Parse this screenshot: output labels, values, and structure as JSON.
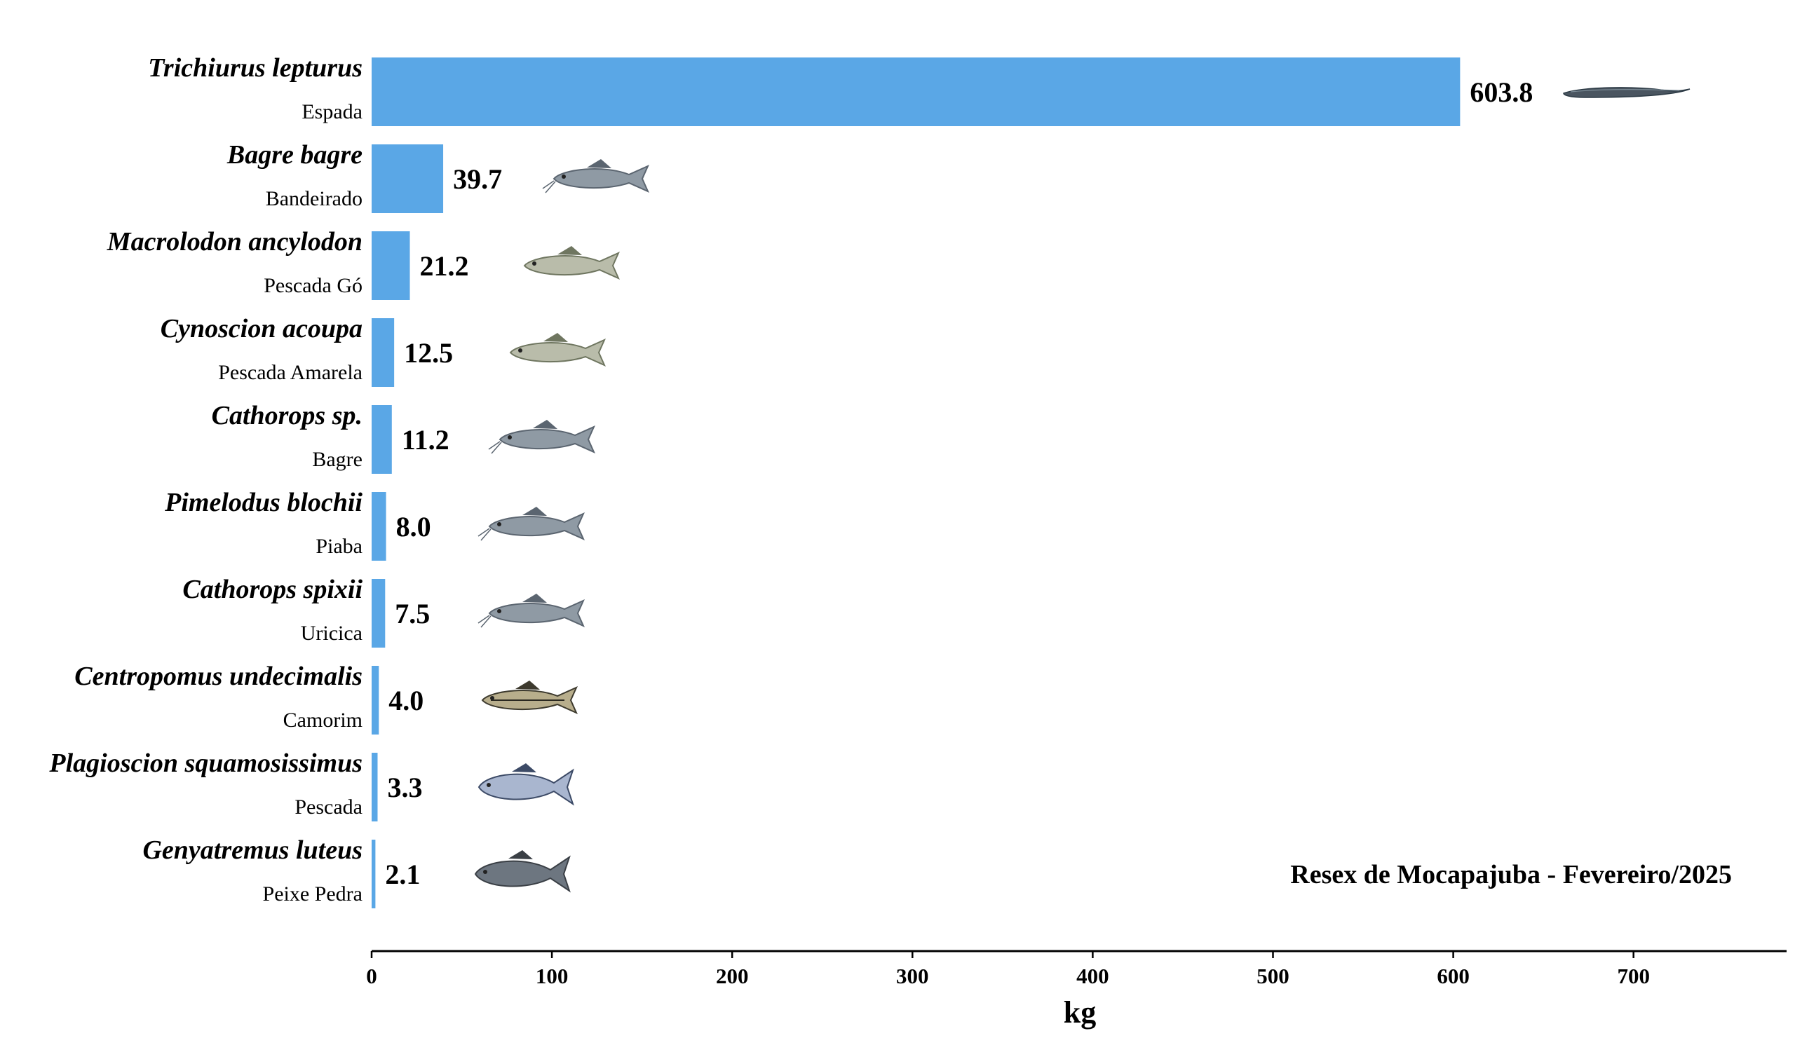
{
  "chart_data": {
    "type": "bar",
    "orientation": "horizontal",
    "categories": [
      {
        "scientific": "Trichiurus lepturus",
        "common": "Espada",
        "fish_icon": "cutlassfish-icon"
      },
      {
        "scientific": "Bagre bagre",
        "common": "Bandeirado",
        "fish_icon": "catfish-icon"
      },
      {
        "scientific": "Macrolodon ancylodon",
        "common": "Pescada Gó",
        "fish_icon": "weakfish-icon"
      },
      {
        "scientific": "Cynoscion acoupa",
        "common": "Pescada Amarela",
        "fish_icon": "weakfish-icon"
      },
      {
        "scientific": "Cathorops sp.",
        "common": "Bagre",
        "fish_icon": "catfish-icon"
      },
      {
        "scientific": "Pimelodus blochii",
        "common": "Piaba",
        "fish_icon": "catfish-icon"
      },
      {
        "scientific": "Cathorops spixii",
        "common": "Uricica",
        "fish_icon": "catfish-icon"
      },
      {
        "scientific": "Centropomus undecimalis",
        "common": "Camorim",
        "fish_icon": "snook-icon"
      },
      {
        "scientific": "Plagioscion squamosissimus",
        "common": "Pescada",
        "fish_icon": "croaker-icon"
      },
      {
        "scientific": "Genyatremus luteus",
        "common": "Peixe Pedra",
        "fish_icon": "grunt-icon"
      }
    ],
    "values": [
      603.8,
      39.7,
      21.2,
      12.5,
      11.2,
      8.0,
      7.5,
      4.0,
      3.3,
      2.1
    ],
    "value_labels": [
      "603.8",
      "39.7",
      "21.2",
      "12.5",
      "11.2",
      "8.0",
      "7.5",
      "4.0",
      "3.3",
      "2.1"
    ],
    "xlabel": "kg",
    "ylabel": "",
    "xlim": [
      0,
      785
    ],
    "xticks": [
      0,
      100,
      200,
      300,
      400,
      500,
      600,
      700
    ],
    "annotation": "Resex de Mocapajuba - Fevereiro/2025",
    "grid": false,
    "legend": "none",
    "colors": {
      "bar": "#5aa7e6",
      "text": "#000000",
      "axis": "#000000"
    }
  }
}
